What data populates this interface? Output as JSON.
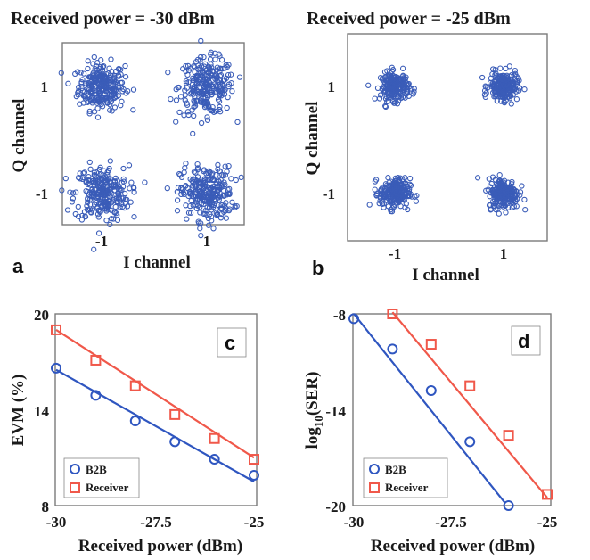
{
  "colors": {
    "constellation": "#3a5cb8",
    "b2b": "#2f56c0",
    "receiver": "#f0584a",
    "frame": "#7a7a7a",
    "text": "#1a1a1a"
  },
  "chart_data": [
    {
      "type": "scatter",
      "panel": "a",
      "title": "Received power = -30 dBm",
      "xlabel": "I channel",
      "ylabel": "Q channel",
      "xticks": [
        "-1",
        "1"
      ],
      "yticks": [
        "1",
        "-1"
      ],
      "xlim": [
        -2,
        2
      ],
      "ylim": [
        -2,
        2
      ],
      "series": [
        {
          "clusters": [
            {
              "x": -1,
              "y": 1,
              "spread": 0.22
            },
            {
              "x": 1,
              "y": 1,
              "spread": 0.26
            },
            {
              "x": -1,
              "y": -1,
              "spread": 0.26
            },
            {
              "x": 1,
              "y": -1,
              "spread": 0.25
            }
          ],
          "points_per_cluster": 260
        }
      ]
    },
    {
      "type": "scatter",
      "panel": "b",
      "title": "Received power = -25 dBm",
      "xlabel": "I channel",
      "ylabel": "Q channel",
      "xticks": [
        "-1",
        "1"
      ],
      "yticks": [
        "1",
        "-1"
      ],
      "xlim": [
        -2,
        2
      ],
      "ylim": [
        -2,
        2
      ],
      "series": [
        {
          "clusters": [
            {
              "x": -1,
              "y": 1,
              "spread": 0.13
            },
            {
              "x": 1,
              "y": 1,
              "spread": 0.13
            },
            {
              "x": -1,
              "y": -1,
              "spread": 0.14
            },
            {
              "x": 1,
              "y": -1,
              "spread": 0.14
            }
          ],
          "points_per_cluster": 220
        }
      ]
    },
    {
      "type": "line",
      "panel": "c",
      "xlabel": "Received power (dBm)",
      "ylabel": "EVM (%)",
      "xlim": [
        -30,
        -25
      ],
      "ylim": [
        8,
        20
      ],
      "xticks": [
        "-30",
        "-27.5",
        "-25"
      ],
      "yticks": [
        "20",
        "14",
        "8"
      ],
      "series": [
        {
          "name": "B2B",
          "marker": "circle",
          "x": [
            -30,
            -29,
            -28,
            -27,
            -26,
            -25
          ],
          "y": [
            16.6,
            14.9,
            13.3,
            12.0,
            10.9,
            9.9
          ],
          "fit": [
            [
              -30,
              16.5
            ],
            [
              -25,
              9.5
            ]
          ]
        },
        {
          "name": "Receiver",
          "marker": "square",
          "x": [
            -30,
            -29,
            -28,
            -27,
            -26,
            -25
          ],
          "y": [
            19.0,
            17.1,
            15.5,
            13.7,
            12.2,
            10.9
          ],
          "fit": [
            [
              -30,
              19.0
            ],
            [
              -25,
              11.0
            ]
          ]
        }
      ]
    },
    {
      "type": "line",
      "panel": "d",
      "xlabel": "Received power (dBm)",
      "ylabel": "log10(SER)",
      "ylabel_main": "log",
      "ylabel_sub": "10",
      "ylabel_tail": "(SER)",
      "xlim": [
        -30,
        -25
      ],
      "ylim": [
        -20,
        -8
      ],
      "xticks": [
        "-30",
        "-27.5",
        "-25"
      ],
      "yticks": [
        "-8",
        "-14",
        "-20"
      ],
      "series": [
        {
          "name": "B2B",
          "marker": "circle",
          "x": [
            -30,
            -29,
            -28,
            -27,
            -26
          ],
          "y": [
            -8.3,
            -10.2,
            -12.8,
            -16.0,
            -20.0
          ],
          "fit": [
            [
              -30,
              -8.0
            ],
            [
              -26.1,
              -19.8
            ]
          ]
        },
        {
          "name": "Receiver",
          "marker": "square",
          "x": [
            -29,
            -28,
            -27,
            -26,
            -25
          ],
          "y": [
            -8.0,
            -9.9,
            -12.5,
            -15.6,
            -19.3
          ],
          "fit": [
            [
              -29,
              -7.9
            ],
            [
              -25,
              -19.5
            ]
          ]
        }
      ]
    }
  ]
}
